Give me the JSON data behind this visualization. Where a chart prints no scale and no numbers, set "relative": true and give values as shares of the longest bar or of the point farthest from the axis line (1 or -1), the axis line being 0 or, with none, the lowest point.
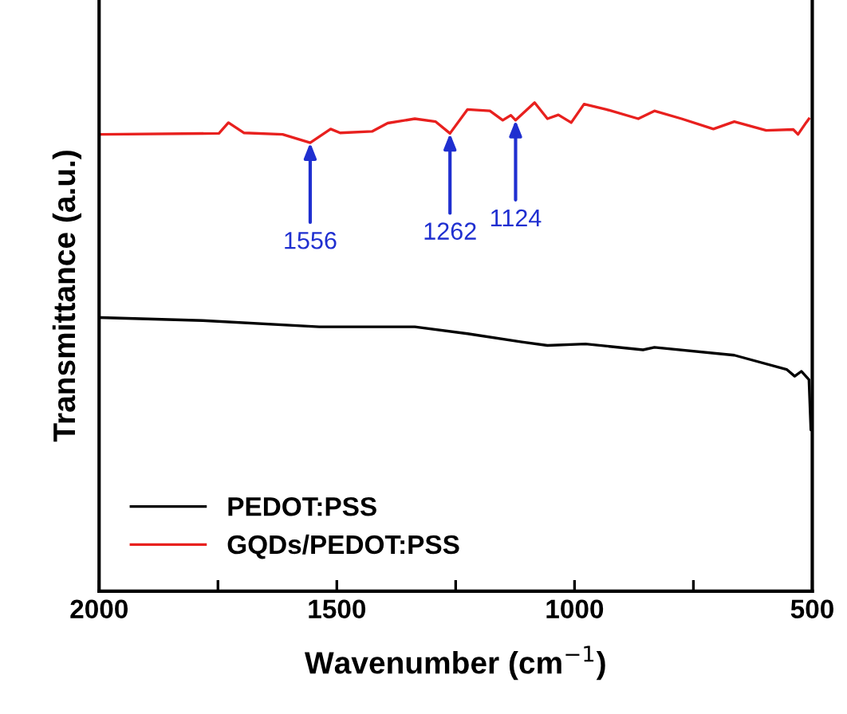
{
  "chart_data": {
    "type": "line",
    "relative": true,
    "xlabel": "Wavenumber (cm$^{−1}$)",
    "ylabel": "Transmittance (a.u.)",
    "xlim": [
      2000,
      500
    ],
    "xticks": [
      2000,
      {
        "value": 1750,
        "label": null
      },
      1500,
      {
        "value": 1250,
        "label": null
      },
      1000,
      {
        "value": 750,
        "label": null
      },
      500
    ],
    "legend": "bottom left",
    "grid": false,
    "marker": "none",
    "line_style": "solid",
    "series": [
      {
        "name": "PEDOT:PSS",
        "color": "#000000",
        "x": [
          1997,
          1782,
          1537,
          1336,
          1225,
          1111,
          1057,
          977,
          856,
          832,
          664,
          554,
          537,
          523,
          507,
          503,
          500
        ],
        "values": [
          0.56,
          0.554,
          0.541,
          0.541,
          0.527,
          0.51,
          0.503,
          0.506,
          0.494,
          0.499,
          0.483,
          0.454,
          0.44,
          0.45,
          0.433,
          0.33,
          0.38
        ]
      },
      {
        "name": "GQDs/PEDOT:PSS",
        "color": "#e8201e",
        "x": [
          1997,
          1748,
          1728,
          1695,
          1614,
          1556,
          1513,
          1493,
          1426,
          1393,
          1336,
          1292,
          1262,
          1225,
          1178,
          1151,
          1134,
          1124,
          1084,
          1057,
          1034,
          1007,
          980,
          933,
          866,
          832,
          775,
          708,
          664,
          597,
          540,
          530,
          513,
          507
        ],
        "values": [
          0.935,
          0.937,
          0.959,
          0.938,
          0.935,
          0.918,
          0.946,
          0.938,
          0.941,
          0.958,
          0.967,
          0.961,
          0.937,
          0.986,
          0.983,
          0.964,
          0.974,
          0.964,
          1.0,
          0.967,
          0.975,
          0.959,
          0.997,
          0.986,
          0.967,
          0.983,
          0.967,
          0.946,
          0.961,
          0.943,
          0.945,
          0.935,
          0.959,
          0.967
        ]
      }
    ],
    "annotations": [
      {
        "text": "1556",
        "x": 1556,
        "y": 0.918
      },
      {
        "text": "1262",
        "x": 1262,
        "y": 0.937
      },
      {
        "text": "1124",
        "x": 1124,
        "y": 0.964
      }
    ]
  }
}
